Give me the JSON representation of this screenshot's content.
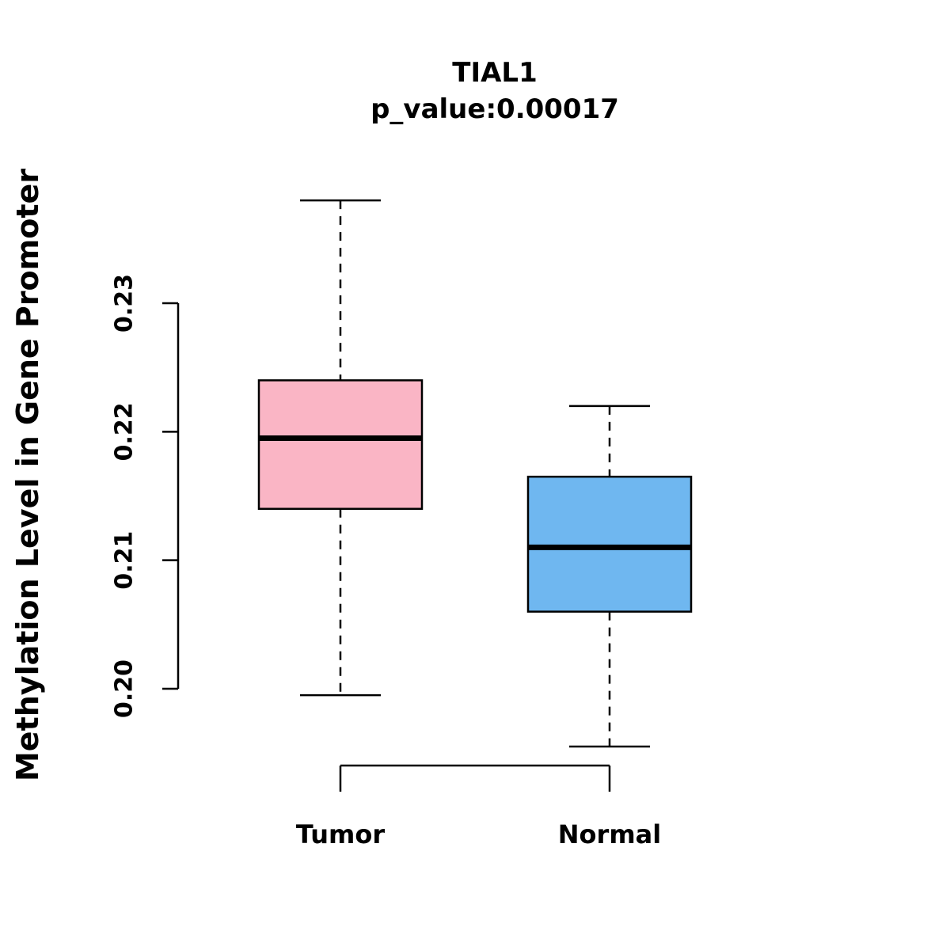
{
  "title": "TIAL1",
  "subtitle": "p_value:0.00017",
  "p_value": "0.00017",
  "ylabel": "Methylation Level in Gene Promoter",
  "chart_data": {
    "type": "boxplot",
    "title": "TIAL1",
    "subtitle": "p_value:0.00017",
    "ylabel": "Methylation Level in Gene Promoter",
    "xlabel": "",
    "categories": [
      "Tumor",
      "Normal"
    ],
    "series": [
      {
        "name": "Tumor",
        "lower_whisker": 0.1995,
        "q1": 0.214,
        "median": 0.2195,
        "q3": 0.224,
        "upper_whisker": 0.238,
        "color": "#FAB5C5"
      },
      {
        "name": "Normal",
        "lower_whisker": 0.1955,
        "q1": 0.206,
        "median": 0.211,
        "q3": 0.2165,
        "upper_whisker": 0.222,
        "color": "#6FB7F0"
      }
    ],
    "yticks": [
      0.2,
      0.21,
      0.22,
      0.23
    ],
    "ylim": [
      0.195,
      0.239
    ],
    "grid": false,
    "legend": "none",
    "axis_color": "#000000"
  }
}
